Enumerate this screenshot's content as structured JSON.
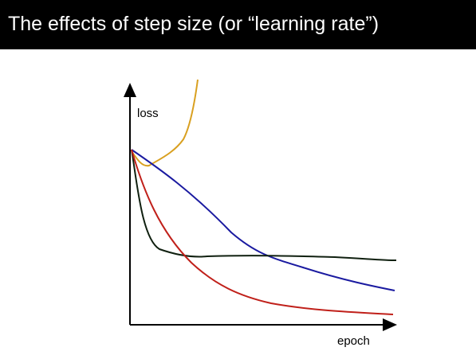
{
  "header": {
    "title": "The effects of step size (or “learning rate”)"
  },
  "axes": {
    "y_label": "loss",
    "x_label": "epoch"
  }
}
